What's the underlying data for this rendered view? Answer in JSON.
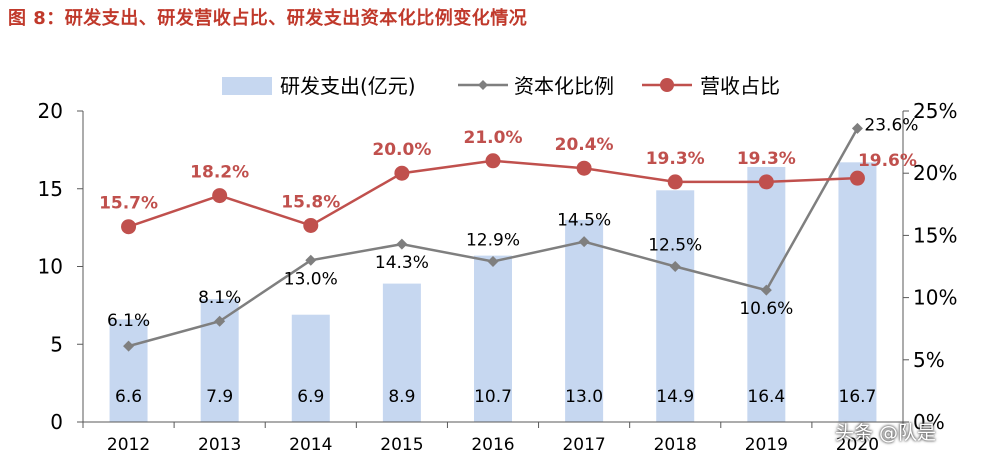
{
  "figure_title": "图 8：研发支出、研发营收占比、研发支出资本化比例变化情况",
  "watermark": "头条 @队是",
  "colors": {
    "bar": "#c6d7f0",
    "capital_line": "#7f7f7f",
    "revenue_line": "#c0504d",
    "revenue_label": "#c0504d",
    "axis": "#595959",
    "text": "#000000"
  },
  "chart_data": {
    "type": "bar",
    "categories": [
      "2012",
      "2013",
      "2014",
      "2015",
      "2016",
      "2017",
      "2018",
      "2019",
      "2020"
    ],
    "left_ylim": [
      0,
      20
    ],
    "left_yticks": [
      0,
      5,
      10,
      15,
      20
    ],
    "right_ylim": [
      0,
      25
    ],
    "right_yticks": [
      "0%",
      "5%",
      "10%",
      "15%",
      "20%",
      "25%"
    ],
    "legend_position": "top-center",
    "grid": false,
    "series": [
      {
        "name": "研发支出(亿元)",
        "type": "bar",
        "axis": "left",
        "values": [
          6.6,
          7.9,
          6.9,
          8.9,
          10.7,
          13.0,
          14.9,
          16.4,
          16.7
        ],
        "labels": [
          "6.6",
          "7.9",
          "6.9",
          "8.9",
          "10.7",
          "13.0",
          "14.9",
          "16.4",
          "16.7"
        ]
      },
      {
        "name": "资本化比例",
        "type": "line",
        "axis": "right",
        "marker": "diamond",
        "values": [
          6.1,
          8.1,
          13.0,
          14.3,
          12.9,
          14.5,
          12.5,
          10.6,
          23.6
        ],
        "labels": [
          "6.1%",
          "8.1%",
          "13.0%",
          "14.3%",
          "12.9%",
          "14.5%",
          "12.5%",
          "10.6%",
          "23.6%"
        ]
      },
      {
        "name": "营收占比",
        "type": "line",
        "axis": "right",
        "marker": "circle",
        "values": [
          15.7,
          18.2,
          15.8,
          20.0,
          21.0,
          20.4,
          19.3,
          19.3,
          19.6
        ],
        "labels": [
          "15.7%",
          "18.2%",
          "15.8%",
          "20.0%",
          "21.0%",
          "20.4%",
          "19.3%",
          "19.3%",
          "19.6%"
        ]
      }
    ]
  }
}
